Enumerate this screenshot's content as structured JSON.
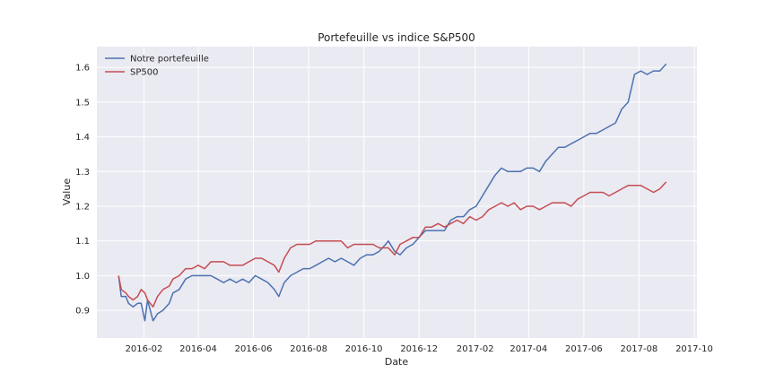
{
  "chart_data": {
    "type": "line",
    "title": "Portefeuille vs indice S&P500",
    "xlabel": "Date",
    "ylabel": "Value",
    "xlim": [
      "2015-12-11",
      "2017-10-04"
    ],
    "ylim": [
      0.82,
      1.66
    ],
    "x_ticks": [
      "2016-02",
      "2016-04",
      "2016-06",
      "2016-08",
      "2016-10",
      "2016-12",
      "2017-02",
      "2017-04",
      "2017-06",
      "2017-08",
      "2017-10"
    ],
    "y_ticks": [
      "0.9",
      "1.0",
      "1.1",
      "1.2",
      "1.3",
      "1.4",
      "1.5",
      "1.6"
    ],
    "grid": true,
    "legend_position": "top-left",
    "series": [
      {
        "name": "Notre portefeuille",
        "color": "#4C72B0",
        "points": [
          [
            "2016-01-04",
            1.0
          ],
          [
            "2016-01-07",
            0.94
          ],
          [
            "2016-01-12",
            0.94
          ],
          [
            "2016-01-15",
            0.92
          ],
          [
            "2016-01-20",
            0.91
          ],
          [
            "2016-01-25",
            0.92
          ],
          [
            "2016-01-29",
            0.92
          ],
          [
            "2016-02-02",
            0.87
          ],
          [
            "2016-02-05",
            0.93
          ],
          [
            "2016-02-11",
            0.87
          ],
          [
            "2016-02-16",
            0.89
          ],
          [
            "2016-02-22",
            0.9
          ],
          [
            "2016-02-29",
            0.92
          ],
          [
            "2016-03-04",
            0.95
          ],
          [
            "2016-03-11",
            0.96
          ],
          [
            "2016-03-18",
            0.99
          ],
          [
            "2016-03-25",
            1.0
          ],
          [
            "2016-04-01",
            1.0
          ],
          [
            "2016-04-08",
            1.0
          ],
          [
            "2016-04-15",
            1.0
          ],
          [
            "2016-04-22",
            0.99
          ],
          [
            "2016-04-29",
            0.98
          ],
          [
            "2016-05-06",
            0.99
          ],
          [
            "2016-05-13",
            0.98
          ],
          [
            "2016-05-20",
            0.99
          ],
          [
            "2016-05-27",
            0.98
          ],
          [
            "2016-06-03",
            1.0
          ],
          [
            "2016-06-10",
            0.99
          ],
          [
            "2016-06-17",
            0.98
          ],
          [
            "2016-06-24",
            0.96
          ],
          [
            "2016-06-29",
            0.94
          ],
          [
            "2016-07-05",
            0.98
          ],
          [
            "2016-07-12",
            1.0
          ],
          [
            "2016-07-19",
            1.01
          ],
          [
            "2016-07-26",
            1.02
          ],
          [
            "2016-08-02",
            1.02
          ],
          [
            "2016-08-09",
            1.03
          ],
          [
            "2016-08-16",
            1.04
          ],
          [
            "2016-08-23",
            1.05
          ],
          [
            "2016-08-30",
            1.04
          ],
          [
            "2016-09-06",
            1.05
          ],
          [
            "2016-09-13",
            1.04
          ],
          [
            "2016-09-20",
            1.03
          ],
          [
            "2016-09-27",
            1.05
          ],
          [
            "2016-10-04",
            1.06
          ],
          [
            "2016-10-11",
            1.06
          ],
          [
            "2016-10-18",
            1.07
          ],
          [
            "2016-10-25",
            1.09
          ],
          [
            "2016-10-28",
            1.1
          ],
          [
            "2016-11-04",
            1.07
          ],
          [
            "2016-11-10",
            1.06
          ],
          [
            "2016-11-17",
            1.08
          ],
          [
            "2016-11-24",
            1.09
          ],
          [
            "2016-12-01",
            1.11
          ],
          [
            "2016-12-08",
            1.13
          ],
          [
            "2016-12-15",
            1.13
          ],
          [
            "2016-12-22",
            1.13
          ],
          [
            "2016-12-29",
            1.13
          ],
          [
            "2017-01-05",
            1.16
          ],
          [
            "2017-01-12",
            1.17
          ],
          [
            "2017-01-19",
            1.17
          ],
          [
            "2017-01-26",
            1.19
          ],
          [
            "2017-02-02",
            1.2
          ],
          [
            "2017-02-09",
            1.23
          ],
          [
            "2017-02-16",
            1.26
          ],
          [
            "2017-02-23",
            1.29
          ],
          [
            "2017-03-02",
            1.31
          ],
          [
            "2017-03-09",
            1.3
          ],
          [
            "2017-03-16",
            1.3
          ],
          [
            "2017-03-23",
            1.3
          ],
          [
            "2017-03-30",
            1.31
          ],
          [
            "2017-04-06",
            1.31
          ],
          [
            "2017-04-13",
            1.3
          ],
          [
            "2017-04-20",
            1.33
          ],
          [
            "2017-04-27",
            1.35
          ],
          [
            "2017-05-04",
            1.37
          ],
          [
            "2017-05-11",
            1.37
          ],
          [
            "2017-05-18",
            1.38
          ],
          [
            "2017-05-25",
            1.39
          ],
          [
            "2017-06-01",
            1.4
          ],
          [
            "2017-06-08",
            1.41
          ],
          [
            "2017-06-15",
            1.41
          ],
          [
            "2017-06-22",
            1.42
          ],
          [
            "2017-06-29",
            1.43
          ],
          [
            "2017-07-06",
            1.44
          ],
          [
            "2017-07-13",
            1.48
          ],
          [
            "2017-07-20",
            1.5
          ],
          [
            "2017-07-27",
            1.58
          ],
          [
            "2017-08-03",
            1.59
          ],
          [
            "2017-08-10",
            1.58
          ],
          [
            "2017-08-17",
            1.59
          ],
          [
            "2017-08-24",
            1.59
          ],
          [
            "2017-08-31",
            1.61
          ]
        ]
      },
      {
        "name": "SP500",
        "color": "#C44E52",
        "points": [
          [
            "2016-01-04",
            1.0
          ],
          [
            "2016-01-07",
            0.96
          ],
          [
            "2016-01-12",
            0.95
          ],
          [
            "2016-01-15",
            0.94
          ],
          [
            "2016-01-20",
            0.93
          ],
          [
            "2016-01-25",
            0.94
          ],
          [
            "2016-01-29",
            0.96
          ],
          [
            "2016-02-02",
            0.95
          ],
          [
            "2016-02-05",
            0.93
          ],
          [
            "2016-02-11",
            0.91
          ],
          [
            "2016-02-16",
            0.94
          ],
          [
            "2016-02-22",
            0.96
          ],
          [
            "2016-02-29",
            0.97
          ],
          [
            "2016-03-04",
            0.99
          ],
          [
            "2016-03-11",
            1.0
          ],
          [
            "2016-03-18",
            1.02
          ],
          [
            "2016-03-25",
            1.02
          ],
          [
            "2016-04-01",
            1.03
          ],
          [
            "2016-04-08",
            1.02
          ],
          [
            "2016-04-15",
            1.04
          ],
          [
            "2016-04-22",
            1.04
          ],
          [
            "2016-04-29",
            1.04
          ],
          [
            "2016-05-06",
            1.03
          ],
          [
            "2016-05-13",
            1.03
          ],
          [
            "2016-05-20",
            1.03
          ],
          [
            "2016-05-27",
            1.04
          ],
          [
            "2016-06-03",
            1.05
          ],
          [
            "2016-06-10",
            1.05
          ],
          [
            "2016-06-17",
            1.04
          ],
          [
            "2016-06-24",
            1.03
          ],
          [
            "2016-06-29",
            1.01
          ],
          [
            "2016-07-05",
            1.05
          ],
          [
            "2016-07-12",
            1.08
          ],
          [
            "2016-07-19",
            1.09
          ],
          [
            "2016-07-26",
            1.09
          ],
          [
            "2016-08-02",
            1.09
          ],
          [
            "2016-08-09",
            1.1
          ],
          [
            "2016-08-16",
            1.1
          ],
          [
            "2016-08-23",
            1.1
          ],
          [
            "2016-08-30",
            1.1
          ],
          [
            "2016-09-06",
            1.1
          ],
          [
            "2016-09-13",
            1.08
          ],
          [
            "2016-09-20",
            1.09
          ],
          [
            "2016-09-27",
            1.09
          ],
          [
            "2016-10-04",
            1.09
          ],
          [
            "2016-10-11",
            1.09
          ],
          [
            "2016-10-18",
            1.08
          ],
          [
            "2016-10-25",
            1.08
          ],
          [
            "2016-10-28",
            1.08
          ],
          [
            "2016-11-04",
            1.06
          ],
          [
            "2016-11-10",
            1.09
          ],
          [
            "2016-11-17",
            1.1
          ],
          [
            "2016-11-24",
            1.11
          ],
          [
            "2016-12-01",
            1.11
          ],
          [
            "2016-12-08",
            1.14
          ],
          [
            "2016-12-15",
            1.14
          ],
          [
            "2016-12-22",
            1.15
          ],
          [
            "2016-12-29",
            1.14
          ],
          [
            "2017-01-05",
            1.15
          ],
          [
            "2017-01-12",
            1.16
          ],
          [
            "2017-01-19",
            1.15
          ],
          [
            "2017-01-26",
            1.17
          ],
          [
            "2017-02-02",
            1.16
          ],
          [
            "2017-02-09",
            1.17
          ],
          [
            "2017-02-16",
            1.19
          ],
          [
            "2017-02-23",
            1.2
          ],
          [
            "2017-03-02",
            1.21
          ],
          [
            "2017-03-09",
            1.2
          ],
          [
            "2017-03-16",
            1.21
          ],
          [
            "2017-03-23",
            1.19
          ],
          [
            "2017-03-30",
            1.2
          ],
          [
            "2017-04-06",
            1.2
          ],
          [
            "2017-04-13",
            1.19
          ],
          [
            "2017-04-20",
            1.2
          ],
          [
            "2017-04-27",
            1.21
          ],
          [
            "2017-05-04",
            1.21
          ],
          [
            "2017-05-11",
            1.21
          ],
          [
            "2017-05-18",
            1.2
          ],
          [
            "2017-05-25",
            1.22
          ],
          [
            "2017-06-01",
            1.23
          ],
          [
            "2017-06-08",
            1.24
          ],
          [
            "2017-06-15",
            1.24
          ],
          [
            "2017-06-22",
            1.24
          ],
          [
            "2017-06-29",
            1.23
          ],
          [
            "2017-07-06",
            1.24
          ],
          [
            "2017-07-13",
            1.25
          ],
          [
            "2017-07-20",
            1.26
          ],
          [
            "2017-07-27",
            1.26
          ],
          [
            "2017-08-03",
            1.26
          ],
          [
            "2017-08-10",
            1.25
          ],
          [
            "2017-08-17",
            1.24
          ],
          [
            "2017-08-24",
            1.25
          ],
          [
            "2017-08-31",
            1.27
          ]
        ]
      }
    ]
  }
}
